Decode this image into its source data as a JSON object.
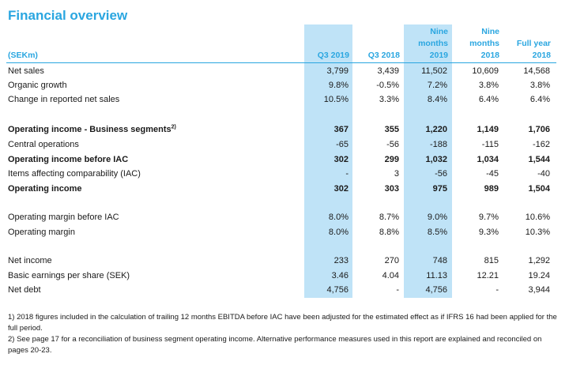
{
  "title": "Financial overview",
  "headers": {
    "unit": "(SEKm)",
    "q3_2019": "Q3 2019",
    "q3_2018": "Q3 2018",
    "nine_2019": [
      "Nine",
      "months",
      "2019"
    ],
    "nine_2018": [
      "Nine",
      "months",
      "2018"
    ],
    "full_year_2018": [
      "Full year",
      "2018"
    ]
  },
  "rows": [
    {
      "label": "Net sales",
      "values": [
        "3,799",
        "3,439",
        "11,502",
        "10,609",
        "14,568"
      ]
    },
    {
      "label": "Organic growth",
      "values": [
        "9.8%",
        "-0.5%",
        "7.2%",
        "3.8%",
        "3.8%"
      ]
    },
    {
      "label": "Change in reported net sales",
      "values": [
        "10.5%",
        "3.3%",
        "8.4%",
        "6.4%",
        "6.4%"
      ]
    },
    {
      "label": "Operating income - Business segments",
      "sup": "2)",
      "values": [
        "367",
        "355",
        "1,220",
        "1,149",
        "1,706"
      ]
    },
    {
      "label": "Central operations",
      "values": [
        "-65",
        "-56",
        "-188",
        "-115",
        "-162"
      ]
    },
    {
      "label": "Operating income before IAC",
      "values": [
        "302",
        "299",
        "1,032",
        "1,034",
        "1,544"
      ]
    },
    {
      "label": "Items affecting comparability (IAC)",
      "values": [
        "-",
        "3",
        "-56",
        "-45",
        "-40"
      ]
    },
    {
      "label": "Operating income",
      "values": [
        "302",
        "303",
        "975",
        "989",
        "1,504"
      ]
    },
    {
      "label": "Operating margin before IAC",
      "values": [
        "8.0%",
        "8.7%",
        "9.0%",
        "9.7%",
        "10.6%"
      ]
    },
    {
      "label": "Operating margin",
      "values": [
        "8.0%",
        "8.8%",
        "8.5%",
        "9.3%",
        "10.3%"
      ]
    },
    {
      "label": "Net income",
      "values": [
        "233",
        "270",
        "748",
        "815",
        "1,292"
      ]
    },
    {
      "label": "Basic earnings per share (SEK)",
      "values": [
        "3.46",
        "4.04",
        "11.13",
        "12.21",
        "19.24"
      ]
    },
    {
      "label": "Net debt",
      "values": [
        "4,756",
        "-",
        "4,756",
        "-",
        "3,944"
      ]
    }
  ],
  "footnotes": [
    "1) 2018 figures included in the calculation of trailing 12 months EBITDA before IAC have been adjusted for the estimated effect as if IFRS 16 had been applied for the full period.",
    "2) See page 17 for a reconciliation of business segment operating income. Alternative performance measures used in this report are explained and reconciled on pages 20-23."
  ],
  "colors": {
    "accent": "#2aa6e0",
    "highlight": "#bfe3f7"
  }
}
